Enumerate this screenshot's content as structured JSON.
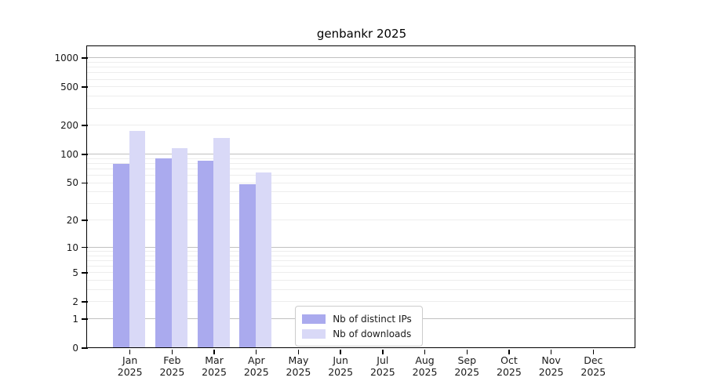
{
  "chart_data": {
    "type": "bar",
    "title": "genbankr 2025",
    "categories": [
      "Jan",
      "Feb",
      "Mar",
      "Apr",
      "May",
      "Jun",
      "Jul",
      "Aug",
      "Sep",
      "Oct",
      "Nov",
      "Dec"
    ],
    "year_label": "2025",
    "series": [
      {
        "name": "Nb of distinct IPs",
        "color": "#aaaaee",
        "values": [
          78,
          90,
          85,
          48,
          0,
          0,
          0,
          0,
          0,
          0,
          0,
          0
        ]
      },
      {
        "name": "Nb of downloads",
        "color": "#d9d9f7",
        "values": [
          173,
          115,
          146,
          63,
          0,
          0,
          0,
          0,
          0,
          0,
          0,
          0
        ]
      }
    ],
    "y_axis": {
      "scale": "log10(1+x)",
      "tick_values": [
        0,
        1,
        2,
        5,
        10,
        20,
        50,
        100,
        200,
        500,
        1000
      ],
      "tick_labels": [
        "0",
        "1",
        "2",
        "5",
        "10",
        "20",
        "50",
        "100",
        "200",
        "500",
        "1000"
      ],
      "major_gridlines": [
        1,
        10,
        100,
        1000
      ],
      "minor_gridline_bases": [
        1,
        10,
        100
      ],
      "top_value": 1300,
      "grid": "on",
      "major_grid_color": "#c0c0c0",
      "minor_grid_color": "#ededed"
    },
    "x_axis": {
      "tick_count": 12
    },
    "legend": {
      "position": "lower-center-left-inside",
      "entries": [
        "Nb of distinct IPs",
        "Nb of downloads"
      ]
    },
    "colors": {
      "distinct_ips": "#aaaaee",
      "downloads": "#d9d9f7",
      "spine": "#000000",
      "background": "#ffffff"
    }
  }
}
